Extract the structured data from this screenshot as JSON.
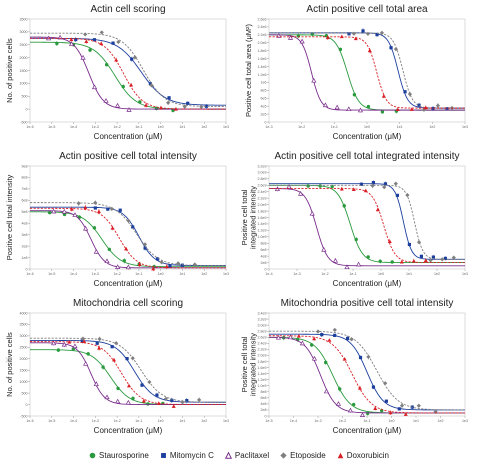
{
  "colors": {
    "Staurosporine": "#2a9a3e",
    "Mitomycin C": "#1c3f9e",
    "Paclitaxel": "#7a2d8c",
    "Etoposide": "#7f7f7f",
    "Doxorubicin": "#d91f26"
  },
  "markers": {
    "Staurosporine": "circle",
    "Mitomycin C": "square",
    "Paclitaxel": "triangle-open",
    "Etoposide": "diamond",
    "Doxorubicin": "triangle"
  },
  "legend": [
    {
      "name": "Staurosporine",
      "icon": "circle-icon"
    },
    {
      "name": "Mitomycin C",
      "icon": "square-icon"
    },
    {
      "name": "Paclitaxel",
      "icon": "open-triangle-icon"
    },
    {
      "name": "Etoposide",
      "icon": "diamond-icon"
    },
    {
      "name": "Doxorubicin",
      "icon": "triangle-icon"
    }
  ],
  "chart_data": [
    {
      "type": "scatter",
      "title": "Actin cell scoring",
      "ylabel": "No. of positive cells",
      "xlabel": "Concentration (μM)",
      "xscale": "log",
      "xlim": [
        -6,
        3
      ],
      "ylim": [
        -500,
        3500
      ],
      "x_ticks": [
        "1e-6",
        "1e-5",
        "1e-4",
        "1e-3",
        "1e-2",
        "1e-1",
        "1e0",
        "1e1",
        "1e2",
        "1e3"
      ],
      "y_ticks": [
        "-500",
        "0",
        "500",
        "1000",
        "1500",
        "2000",
        "2500",
        "3000",
        "3500"
      ],
      "fits": {
        "Staurosporine": {
          "top": 2600,
          "bottom": 0,
          "logEC50": -2.1,
          "hill": 0.9
        },
        "Mitomycin C": {
          "top": 2750,
          "bottom": 150,
          "logEC50": -0.9,
          "hill": 0.8
        },
        "Paclitaxel": {
          "top": 2800,
          "bottom": 0,
          "logEC50": -3.3,
          "hill": 1.3
        },
        "Etoposide": {
          "top": 2950,
          "bottom": 100,
          "logEC50": -0.8,
          "hill": 0.9
        },
        "Doxorubicin": {
          "top": 2750,
          "bottom": 0,
          "logEC50": -1.7,
          "hill": 1.0
        }
      }
    },
    {
      "type": "scatter",
      "title": "Actin positive cell total area",
      "ylabel": "Positive cell total area (μM²)",
      "xlabel": "Concentration (μM)",
      "xscale": "log",
      "xlim": [
        -3,
        3
      ],
      "ylim": [
        0,
        2.6
      ],
      "x_ticks": [
        "1e-3",
        "1e-2",
        "1e-1",
        "1e0",
        "1e1",
        "1e2",
        "1e3"
      ],
      "y_ticks": [
        "0",
        "2e5",
        "4e5",
        "6e5",
        "8e5",
        "1e6",
        "1.2e6",
        "1.4e6",
        "1.6e6",
        "1.8e6",
        "2.0e6",
        "2.2e6",
        "2.4e6",
        "2.6e6"
      ],
      "fits": {
        "Staurosporine": {
          "top": 2.2,
          "bottom": 0.3,
          "logEC50": -0.6,
          "hill": 2.5
        },
        "Mitomycin C": {
          "top": 2.25,
          "bottom": 0.35,
          "logEC50": 0.95,
          "hill": 3.0
        },
        "Paclitaxel": {
          "top": 2.2,
          "bottom": 0.3,
          "logEC50": -1.7,
          "hill": 3.0
        },
        "Etoposide": {
          "top": 2.25,
          "bottom": 0.35,
          "logEC50": 1.1,
          "hill": 3.0
        },
        "Doxorubicin": {
          "top": 2.15,
          "bottom": 0.35,
          "logEC50": 0.3,
          "hill": 3.0
        }
      }
    },
    {
      "type": "scatter",
      "title": "Actin positive cell total intensity",
      "ylabel": "Positive cell total intensity",
      "xlabel": "Concentration (μM)",
      "xscale": "log",
      "xlim": [
        -6,
        3
      ],
      "ylim": [
        0,
        9
      ],
      "x_ticks": [
        "1e-6",
        "1e-5",
        "1e-4",
        "1e-3",
        "1e-2",
        "1e-1",
        "1e0",
        "1e1",
        "1e2",
        "1e3"
      ],
      "y_ticks": [
        "0",
        "1e8",
        "2e8",
        "3e8",
        "4e8",
        "5e8",
        "6e8",
        "7e8",
        "8e8",
        "9e8"
      ],
      "fits": {
        "Staurosporine": {
          "top": 5.0,
          "bottom": 0.2,
          "logEC50": -2.7,
          "hill": 1.0
        },
        "Mitomycin C": {
          "top": 5.4,
          "bottom": 0.3,
          "logEC50": -1.0,
          "hill": 1.2
        },
        "Paclitaxel": {
          "top": 5.1,
          "bottom": 0.1,
          "logEC50": -3.2,
          "hill": 1.4
        },
        "Etoposide": {
          "top": 5.8,
          "bottom": 0.3,
          "logEC50": -1.1,
          "hill": 0.9
        },
        "Doxorubicin": {
          "top": 5.3,
          "bottom": 0.1,
          "logEC50": -1.9,
          "hill": 1.1
        }
      }
    },
    {
      "type": "scatter",
      "title": "Actin positive cell total integrated intensity",
      "ylabel": "Positive cell total integrated intensity",
      "xlabel": "Concentration (μM)",
      "xscale": "log",
      "xlim": [
        -4,
        3
      ],
      "ylim": [
        0,
        3.2
      ],
      "x_ticks": [
        "1e-4",
        "1e-3",
        "1e-2",
        "1e-1",
        "1e0",
        "1e1",
        "1e2",
        "1e3"
      ],
      "y_ticks": [
        "0",
        "2e8",
        "4e8",
        "6e8",
        "8e8",
        "1.0e9",
        "1.2e9",
        "1.4e9",
        "1.6e9",
        "1.8e9",
        "2.0e9",
        "2.2e9",
        "2.4e9",
        "2.6e9",
        "2.8e9",
        "3.0e9",
        "3.2e9"
      ],
      "fits": {
        "Staurosporine": {
          "top": 2.6,
          "bottom": 0.2,
          "logEC50": -1.1,
          "hill": 2.0
        },
        "Mitomycin C": {
          "top": 2.65,
          "bottom": 0.3,
          "logEC50": 0.8,
          "hill": 3.0
        },
        "Paclitaxel": {
          "top": 2.5,
          "bottom": 0.1,
          "logEC50": -2.3,
          "hill": 2.2
        },
        "Etoposide": {
          "top": 2.6,
          "bottom": 0.3,
          "logEC50": 1.2,
          "hill": 3.0
        },
        "Doxorubicin": {
          "top": 2.5,
          "bottom": 0.2,
          "logEC50": 0.1,
          "hill": 2.2
        }
      }
    },
    {
      "type": "scatter",
      "title": "Mitochondria cell scoring",
      "ylabel": "No. of positive cells",
      "xlabel": "Concentration (μM)",
      "xscale": "log",
      "xlim": [
        -6,
        3
      ],
      "ylim": [
        -500,
        4000
      ],
      "x_ticks": [
        "1e-6",
        "1e-5",
        "1e-4",
        "1e-3",
        "1e-2",
        "1e-1",
        "1e0",
        "1e1",
        "1e2",
        "1e3"
      ],
      "y_ticks": [
        "-500",
        "0",
        "500",
        "1000",
        "1500",
        "2000",
        "2500",
        "3000",
        "3500",
        "4000"
      ],
      "fits": {
        "Staurosporine": {
          "top": 2400,
          "bottom": 0,
          "logEC50": -2.3,
          "hill": 1.0
        },
        "Mitomycin C": {
          "top": 2800,
          "bottom": 100,
          "logEC50": -1.2,
          "hill": 1.0
        },
        "Paclitaxel": {
          "top": 2700,
          "bottom": 0,
          "logEC50": -3.2,
          "hill": 1.4
        },
        "Etoposide": {
          "top": 2900,
          "bottom": 100,
          "logEC50": -0.9,
          "hill": 0.9
        },
        "Doxorubicin": {
          "top": 2750,
          "bottom": 0,
          "logEC50": -1.8,
          "hill": 1.0
        }
      }
    },
    {
      "type": "scatter",
      "title": "Mitochondria positive cell total intensity",
      "ylabel": "Positive cell total integrated intensity",
      "xlabel": "Concentration (μM)",
      "xscale": "log",
      "xlim": [
        -5,
        3
      ],
      "ylim": [
        0,
        3.4
      ],
      "x_ticks": [
        "1e-5",
        "1e-4",
        "1e-3",
        "1e-2",
        "1e-1",
        "1e0",
        "1e1",
        "1e2",
        "1e3"
      ],
      "y_ticks": [
        "0",
        "2e8",
        "4e8",
        "6e8",
        "8e8",
        "1.0e9",
        "1.2e9",
        "1.4e9",
        "1.6e9",
        "1.8e9",
        "2.0e9",
        "2.2e9",
        "2.4e9",
        "2.6e9",
        "2.8e9",
        "3.0e9",
        "3.2e9",
        "3.4e9"
      ],
      "fits": {
        "Staurosporine": {
          "top": 2.6,
          "bottom": 0.1,
          "logEC50": -2.4,
          "hill": 1.2
        },
        "Mitomycin C": {
          "top": 2.7,
          "bottom": 0.2,
          "logEC50": -1.0,
          "hill": 1.3
        },
        "Paclitaxel": {
          "top": 2.6,
          "bottom": 0.1,
          "logEC50": -2.9,
          "hill": 1.4
        },
        "Etoposide": {
          "top": 2.8,
          "bottom": 0.2,
          "logEC50": -0.6,
          "hill": 1.0
        },
        "Doxorubicin": {
          "top": 2.65,
          "bottom": 0.1,
          "logEC50": -1.6,
          "hill": 1.1
        }
      }
    }
  ]
}
